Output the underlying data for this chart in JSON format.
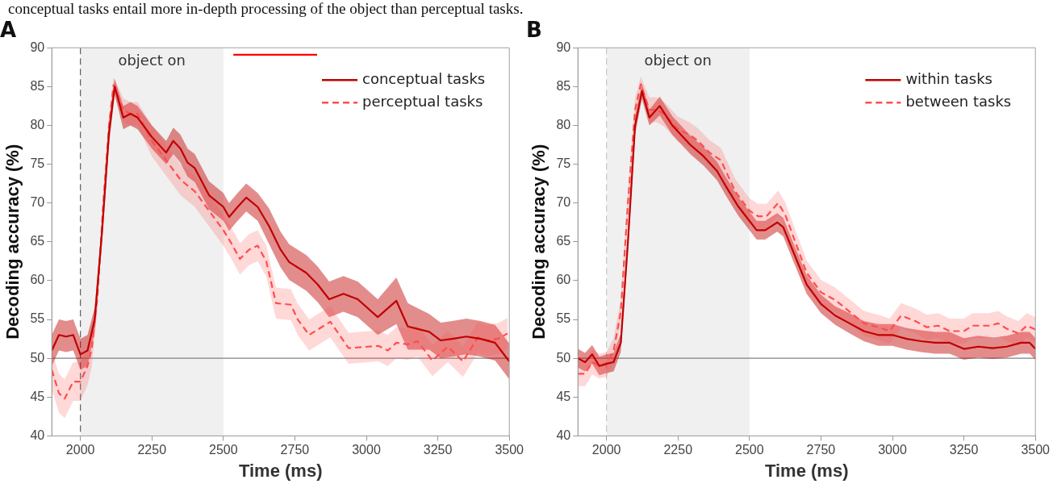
{
  "chart_data": [
    {
      "type": "line",
      "title": "A",
      "xlabel": "Time (ms)",
      "ylabel": "Decoding accuracy (%)",
      "annotations": [
        "conceptual tasks entail more in-depth processing of the object than perceptual tasks."
      ],
      "xlim": [
        1900,
        3500
      ],
      "xticks": [
        2000,
        2250,
        2500,
        2750,
        3000,
        3250,
        3500
      ],
      "ylim": [
        40,
        90
      ],
      "yticks": [
        40,
        45,
        50,
        55,
        60,
        65,
        70,
        75,
        80,
        85,
        90
      ],
      "grid": false,
      "legend": "top right",
      "marker": "none",
      "ref_lines": [
        {
          "axis": "y",
          "value": 50,
          "color": "#808080",
          "line_style": "solid"
        },
        {
          "axis": "x",
          "value": 2000,
          "color": "#606060",
          "line_style": "dashed"
        }
      ],
      "bands": [
        {
          "axis": "x",
          "from": 2000,
          "to": 2500,
          "label": "object on",
          "color": "#f0f0f0"
        }
      ],
      "series": [
        {
          "name": "conceptual tasks",
          "color": "#c00000",
          "line_style": "solid",
          "x": [
            1900,
            1925,
            1950,
            1975,
            2000,
            2025,
            2050,
            2075,
            2100,
            2120,
            2150,
            2175,
            2200,
            2250,
            2300,
            2325,
            2350,
            2375,
            2400,
            2450,
            2500,
            2520,
            2550,
            2580,
            2620,
            2660,
            2700,
            2730,
            2790,
            2830,
            2870,
            2920,
            2970,
            3040,
            3105,
            3145,
            3220,
            3260,
            3300,
            3350,
            3400,
            3450,
            3475,
            3500
          ],
          "values": [
            51,
            53,
            52.8,
            53,
            50.5,
            51,
            55,
            66,
            79,
            85,
            81,
            81.5,
            81,
            78.5,
            76.5,
            78,
            77,
            75.2,
            74.5,
            71,
            69.5,
            68.2,
            69.5,
            70.7,
            69.5,
            67,
            64,
            62.4,
            61,
            59.5,
            57.6,
            58.3,
            57.6,
            55.3,
            57.4,
            54.1,
            53.4,
            52.3,
            52.5,
            52.8,
            52.5,
            52,
            50.8,
            49.6
          ],
          "lower": [
            49,
            51,
            50.8,
            51,
            48.5,
            49,
            53.5,
            64.5,
            77.5,
            84,
            79.5,
            80,
            79.5,
            77,
            75,
            76.3,
            75.2,
            73.4,
            72.7,
            69.2,
            67.7,
            66.4,
            67.7,
            68.9,
            67.7,
            64.7,
            61.7,
            60.1,
            58.7,
            57.2,
            55.3,
            56,
            55.3,
            53,
            54.4,
            51.1,
            51.1,
            50,
            50.2,
            50.5,
            50.2,
            49.7,
            48.5,
            47.3
          ],
          "upper": [
            53,
            55,
            54.8,
            55,
            52.5,
            53,
            56.5,
            67.5,
            80.5,
            86,
            82.5,
            83,
            82.5,
            80,
            78,
            79.7,
            78.8,
            77,
            76.3,
            72.8,
            71.3,
            70,
            71.3,
            72.5,
            71.3,
            69.3,
            66.3,
            64.7,
            63.3,
            61.8,
            59.9,
            60.6,
            59.9,
            57.6,
            60.4,
            57.1,
            55.7,
            54.6,
            54.8,
            55.1,
            54.8,
            54.3,
            53.1,
            51.9
          ]
        },
        {
          "name": "perceptual tasks",
          "color": "#ff4d4d",
          "line_style": "dashed",
          "x": [
            1900,
            1925,
            1945,
            1975,
            2000,
            2025,
            2040,
            2060,
            2080,
            2100,
            2116,
            2150,
            2175,
            2200,
            2250,
            2300,
            2350,
            2400,
            2450,
            2500,
            2525,
            2558,
            2590,
            2620,
            2650,
            2684,
            2736,
            2760,
            2800,
            2874,
            2938,
            3042,
            3075,
            3105,
            3145,
            3179,
            3231,
            3285,
            3338,
            3390,
            3421,
            3460,
            3494
          ],
          "values": [
            48.5,
            45.5,
            44.8,
            47,
            47,
            49,
            51.3,
            58,
            70,
            80,
            85.2,
            82,
            81.5,
            81.5,
            78,
            75.5,
            73,
            71.5,
            69,
            66.5,
            65,
            62.8,
            64,
            64.5,
            62.5,
            57.1,
            56.9,
            55,
            53,
            54.7,
            51.3,
            51.6,
            51,
            52,
            51.8,
            52.2,
            49.7,
            51.5,
            49.6,
            52.7,
            52.3,
            52.5,
            53.2
          ],
          "lower": [
            46,
            43,
            42.3,
            44.5,
            44.5,
            46.5,
            49,
            56.5,
            69,
            79,
            84.2,
            80.5,
            80,
            80,
            76,
            73.5,
            71,
            69.5,
            67,
            64.5,
            63,
            60.8,
            62,
            62.5,
            60.5,
            55.1,
            54.9,
            53,
            51,
            52.7,
            49.3,
            49.6,
            49,
            50,
            49.8,
            50.2,
            47.7,
            49.5,
            47.6,
            50.7,
            50.3,
            50.5,
            51.2
          ],
          "upper": [
            51,
            48,
            47.3,
            49.5,
            49.5,
            51.5,
            53.6,
            59.5,
            71,
            81,
            86.2,
            83.5,
            83,
            83,
            80,
            77.5,
            75,
            73.5,
            71,
            68.5,
            67,
            64.8,
            66,
            66.5,
            64.5,
            59.1,
            58.9,
            57,
            55,
            56.7,
            53.3,
            53.6,
            53,
            54,
            53.8,
            54.2,
            51.7,
            53.5,
            51.6,
            54.7,
            54.3,
            54.5,
            55.2
          ]
        },
        {
          "color": "#ff0000",
          "line_style": "solid",
          "x": [
            2535,
            2828
          ],
          "values": [
            89.1,
            89.1
          ]
        }
      ]
    },
    {
      "type": "line",
      "title": "B",
      "xlabel": "Time (ms)",
      "ylabel": "Decoding accuracy (%)",
      "xlim": [
        1900,
        3500
      ],
      "xticks": [
        2000,
        2250,
        2500,
        2750,
        3000,
        3250,
        3500
      ],
      "ylim": [
        40,
        90
      ],
      "yticks": [
        40,
        45,
        50,
        55,
        60,
        65,
        70,
        75,
        80,
        85,
        90
      ],
      "grid": false,
      "legend": "top right",
      "marker": "none",
      "ref_lines": [
        {
          "axis": "y",
          "value": 50,
          "color": "#808080",
          "line_style": "solid"
        },
        {
          "axis": "x",
          "value": 2000,
          "color": "#c8c8c8",
          "line_style": "dashed"
        }
      ],
      "bands": [
        {
          "axis": "x",
          "from": 2000,
          "to": 2500,
          "label": "object on",
          "color": "#f0f0f0"
        }
      ],
      "series": [
        {
          "name": "within tasks",
          "color": "#c00000",
          "line_style": "solid",
          "x": [
            1900,
            1925,
            1950,
            1975,
            2000,
            2025,
            2050,
            2075,
            2100,
            2124,
            2150,
            2186,
            2230,
            2293,
            2340,
            2387,
            2420,
            2460,
            2525,
            2555,
            2597,
            2618,
            2650,
            2700,
            2750,
            2800,
            2850,
            2900,
            2950,
            3000,
            3050,
            3100,
            3150,
            3200,
            3250,
            3300,
            3350,
            3400,
            3450,
            3480,
            3500
          ],
          "values": [
            50,
            49.5,
            50.5,
            49,
            49.3,
            49.5,
            52,
            65,
            80,
            84.4,
            81,
            82.5,
            80,
            77.5,
            76,
            74.1,
            72,
            69.6,
            66.5,
            66.5,
            67.5,
            66.9,
            64,
            59.5,
            57,
            55.5,
            54.5,
            53.5,
            53,
            53,
            52.5,
            52.2,
            52,
            52,
            51.2,
            51.5,
            51.3,
            51.5,
            52,
            52,
            51.2
          ],
          "lower": [
            48.8,
            48.3,
            49.3,
            47.8,
            48.1,
            48.3,
            50.8,
            63.8,
            78.8,
            83.4,
            80,
            81.3,
            78.8,
            76.3,
            74.8,
            72.9,
            70.8,
            68.4,
            65.3,
            65.3,
            66.3,
            65.7,
            62.8,
            58.3,
            55.8,
            54.3,
            53.2,
            52.2,
            51.6,
            51.6,
            51.1,
            50.8,
            50.6,
            50.6,
            49.8,
            50.1,
            49.9,
            50.1,
            50.6,
            50.6,
            49.8
          ],
          "upper": [
            51.2,
            50.7,
            51.7,
            50.2,
            50.5,
            50.7,
            53.2,
            66.2,
            81.2,
            85.4,
            82,
            83.7,
            81.2,
            78.7,
            77.2,
            75.3,
            73.2,
            70.8,
            67.7,
            67.7,
            68.7,
            68.1,
            65.2,
            60.7,
            58.2,
            56.7,
            55.8,
            54.8,
            54.4,
            54.4,
            53.9,
            53.6,
            53.4,
            53.4,
            52.6,
            52.9,
            52.7,
            52.9,
            53.4,
            53.4,
            52.6
          ]
        },
        {
          "name": "between tasks",
          "color": "#ff4d4d",
          "line_style": "dashed",
          "x": [
            1900,
            1925,
            1950,
            1975,
            2000,
            2025,
            2050,
            2075,
            2100,
            2120,
            2150,
            2175,
            2200,
            2250,
            2290,
            2320,
            2360,
            2400,
            2450,
            2500,
            2530,
            2560,
            2600,
            2625,
            2660,
            2700,
            2750,
            2800,
            2850,
            2900,
            2950,
            2990,
            3030,
            3080,
            3120,
            3160,
            3200,
            3250,
            3280,
            3340,
            3370,
            3400,
            3440,
            3470,
            3500
          ],
          "values": [
            48,
            48,
            49.5,
            49,
            49.2,
            51,
            56,
            70,
            82,
            85.3,
            82,
            82,
            81.5,
            79.5,
            78.8,
            78,
            76.5,
            75.5,
            71.5,
            69,
            68.3,
            68.3,
            70,
            68.5,
            65,
            61,
            58.5,
            57.5,
            56,
            54.5,
            54,
            53.5,
            55.5,
            54.8,
            54,
            54.2,
            53.5,
            53.5,
            54.2,
            54.2,
            54.5,
            53.8,
            53.2,
            54.2,
            53.7
          ],
          "lower": [
            46.4,
            46.4,
            47.9,
            47.4,
            47.6,
            49.4,
            54.4,
            68.4,
            80.4,
            84.3,
            80.4,
            80.4,
            79.9,
            77.9,
            77.2,
            76.4,
            74.9,
            73.9,
            69.9,
            67.4,
            66.7,
            66.7,
            68.4,
            66.9,
            63.4,
            59.4,
            56.9,
            55.9,
            54.4,
            52.9,
            52.4,
            51.9,
            53.9,
            53.2,
            52.4,
            52.6,
            51.9,
            51.9,
            52.6,
            52.6,
            52.9,
            52.2,
            51.6,
            52.6,
            52.1
          ],
          "upper": [
            49.6,
            49.6,
            51.1,
            50.6,
            50.8,
            52.6,
            57.6,
            71.6,
            83.6,
            86.3,
            83.6,
            83.6,
            83.1,
            81.1,
            80.4,
            79.6,
            78.1,
            77.1,
            73.1,
            70.6,
            69.9,
            69.9,
            71.6,
            70.1,
            66.6,
            62.6,
            60.1,
            59.1,
            57.6,
            56.1,
            55.6,
            55.1,
            57.1,
            56.4,
            55.6,
            55.8,
            55.1,
            55.1,
            55.8,
            55.8,
            56.1,
            55.4,
            54.8,
            55.8,
            55.3
          ]
        }
      ]
    }
  ]
}
